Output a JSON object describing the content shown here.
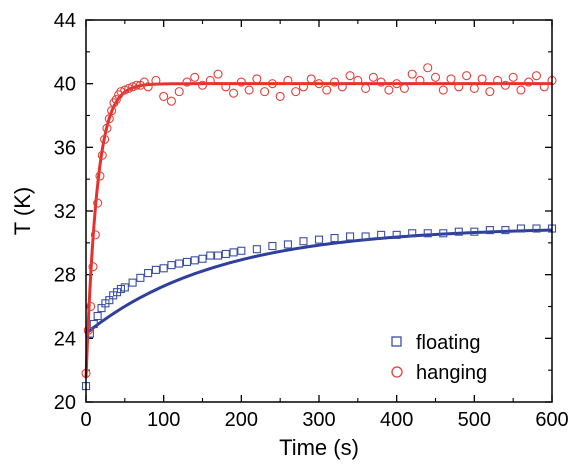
{
  "chart_data": {
    "type": "scatter",
    "title": "",
    "xlabel": "Time (s)",
    "ylabel": "T (K)",
    "xlim": [
      0,
      600
    ],
    "ylim": [
      20,
      44
    ],
    "x_ticks": [
      0,
      100,
      200,
      300,
      400,
      500,
      600
    ],
    "y_ticks": [
      20,
      24,
      28,
      32,
      36,
      40,
      44
    ],
    "x_tick_labels": [
      "0",
      "100",
      "200",
      "300",
      "400",
      "500",
      "600"
    ],
    "y_tick_labels": [
      "20",
      "24",
      "28",
      "32",
      "36",
      "40",
      "44"
    ],
    "grid": false,
    "legend_position": "bottom-right",
    "series": [
      {
        "name": "floating",
        "marker": "square",
        "color": "#3a4fa3",
        "fit_color": "#2e3f9e",
        "x": [
          0,
          5,
          10,
          15,
          20,
          25,
          30,
          35,
          40,
          45,
          50,
          60,
          70,
          80,
          90,
          100,
          110,
          120,
          130,
          140,
          150,
          160,
          170,
          180,
          190,
          200,
          220,
          240,
          260,
          280,
          300,
          320,
          340,
          360,
          380,
          400,
          420,
          440,
          460,
          480,
          500,
          520,
          540,
          560,
          580,
          600
        ],
        "y": [
          21.0,
          24.3,
          24.9,
          25.4,
          25.9,
          26.2,
          26.4,
          26.7,
          26.9,
          27.1,
          27.2,
          27.5,
          27.8,
          28.1,
          28.3,
          28.4,
          28.6,
          28.7,
          28.8,
          28.9,
          29.0,
          29.2,
          29.2,
          29.3,
          29.4,
          29.5,
          29.6,
          29.8,
          29.9,
          30.1,
          30.2,
          30.3,
          30.4,
          30.4,
          30.5,
          30.5,
          30.6,
          30.6,
          30.6,
          30.7,
          30.7,
          30.8,
          30.8,
          30.9,
          30.9,
          30.9
        ]
      },
      {
        "name": "hanging",
        "marker": "circle",
        "color": "#e0413b",
        "fit_color": "#e8302b",
        "x": [
          0,
          3,
          6,
          9,
          12,
          15,
          18,
          21,
          24,
          27,
          30,
          33,
          36,
          39,
          42,
          45,
          50,
          55,
          60,
          65,
          70,
          75,
          80,
          90,
          100,
          110,
          120,
          130,
          140,
          150,
          160,
          170,
          180,
          190,
          200,
          210,
          220,
          230,
          240,
          250,
          260,
          270,
          280,
          290,
          300,
          310,
          320,
          330,
          340,
          350,
          360,
          370,
          380,
          390,
          400,
          410,
          420,
          430,
          440,
          450,
          460,
          470,
          480,
          490,
          500,
          510,
          520,
          530,
          540,
          550,
          560,
          570,
          580,
          590,
          600
        ],
        "y": [
          21.8,
          24.5,
          26.0,
          28.5,
          30.5,
          32.5,
          34.2,
          35.5,
          36.5,
          37.2,
          37.8,
          38.3,
          38.8,
          39.0,
          39.3,
          39.5,
          39.6,
          39.7,
          39.8,
          39.9,
          39.9,
          40.1,
          39.8,
          40.2,
          39.2,
          38.9,
          39.5,
          40.1,
          40.4,
          39.9,
          40.2,
          40.6,
          39.8,
          39.4,
          40.1,
          39.6,
          40.3,
          39.5,
          40.0,
          39.2,
          40.2,
          39.5,
          39.8,
          40.3,
          40.0,
          39.6,
          40.1,
          39.8,
          40.5,
          40.2,
          39.7,
          40.4,
          40.1,
          39.6,
          40.0,
          39.7,
          40.6,
          40.2,
          41.0,
          40.4,
          39.6,
          40.3,
          39.8,
          40.5,
          39.7,
          40.3,
          39.5,
          40.2,
          39.9,
          40.4,
          39.6,
          40.1,
          40.5,
          39.8,
          40.2
        ]
      }
    ]
  }
}
